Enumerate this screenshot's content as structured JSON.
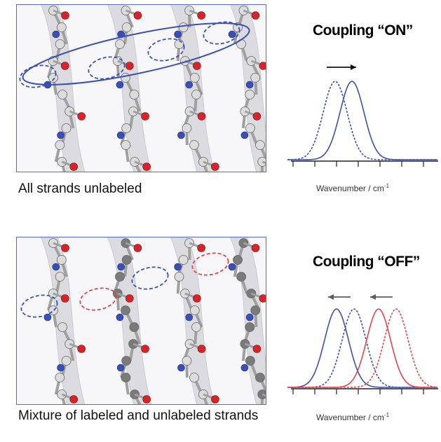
{
  "top": {
    "caption": "All strands unlabeled",
    "spectrum_title": "Coupling “ON”",
    "xlabel_text": "Wavenumber / cm",
    "xlabel_sup": "-1"
  },
  "bottom": {
    "caption": "Mixture of labeled and unlabeled strands",
    "spectrum_title": "Coupling “OFF”",
    "xlabel_text": "Wavenumber / cm",
    "xlabel_sup": "-1"
  },
  "colors": {
    "blue": "#3b4fb5",
    "red": "#e0454f",
    "carbon_light": "#dcdcdc",
    "carbon_dark": "#7a7a7a",
    "oxygen": "#d8232a",
    "nitrogen": "#3a4fb8"
  }
}
